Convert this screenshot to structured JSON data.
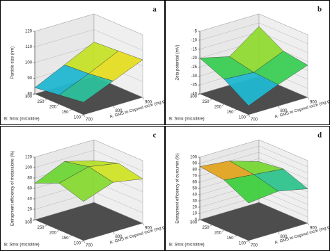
{
  "chart_data": [
    {
      "type": "surface3d",
      "label": "a",
      "zlabel": "Particle size (nm)",
      "xlabel": "A: GMS to Capmul mcm (mg per microlitre)",
      "ylabel": "B: Smix (microlitre)",
      "xlim": [
        700,
        900
      ],
      "xticks": [
        700,
        800,
        900
      ],
      "ylim": [
        100,
        300
      ],
      "yticks": [
        100,
        150,
        200,
        250,
        300
      ],
      "zlim": [
        80,
        120
      ],
      "zticks": [
        80,
        90,
        100,
        110,
        120
      ],
      "x": [
        700,
        800,
        900
      ],
      "y": [
        100,
        200,
        300
      ],
      "z": [
        [
          88,
          96,
          104
        ],
        [
          86,
          94,
          103
        ],
        [
          84,
          93,
          102
        ]
      ]
    },
    {
      "type": "surface3d",
      "label": "b",
      "zlabel": "Zeta potential (mV)",
      "xlabel": "A: GMS to Capmul mcm (mg per microlitre)",
      "ylabel": "B: Smix (microlitre)",
      "xlim": [
        700,
        900
      ],
      "xticks": [
        700,
        800,
        900
      ],
      "ylim": [
        100,
        300
      ],
      "yticks": [
        100,
        150,
        200,
        250,
        300
      ],
      "zlim": [
        -40,
        -5
      ],
      "zticks": [
        -40,
        -35,
        -30,
        -25,
        -20,
        -15,
        -10,
        -5
      ],
      "x": [
        700,
        800,
        900
      ],
      "y": [
        100,
        200,
        300
      ],
      "z": [
        [
          -35,
          -28,
          -22
        ],
        [
          -26,
          -27,
          -20
        ],
        [
          -20,
          -24,
          -12
        ]
      ]
    },
    {
      "type": "surface3d",
      "label": "c",
      "zlabel": "Entrapment efficiency of metaxalone (%)",
      "xlabel": "A: GMS to Capmul mcm (mg per microlitre)",
      "ylabel": "B: Smix (microlitre)",
      "xlim": [
        700,
        900
      ],
      "xticks": [
        700,
        800,
        900
      ],
      "ylim": [
        100,
        300
      ],
      "yticks": [
        100,
        150,
        200,
        250,
        300
      ],
      "zlim": [
        0,
        120
      ],
      "zticks": [
        0,
        20,
        40,
        60,
        80,
        100,
        120
      ],
      "x": [
        700,
        800,
        900
      ],
      "y": [
        100,
        200,
        300
      ],
      "z": [
        [
          75,
          95,
          85
        ],
        [
          90,
          105,
          95
        ],
        [
          70,
          95,
          80
        ]
      ]
    },
    {
      "type": "surface3d",
      "label": "d",
      "zlabel": "Entrapment efficiency of curcumin (%)",
      "xlabel": "A: GMS to Capmul mcm (mg per microlitre)",
      "ylabel": "B: Smix (microlitre)",
      "xlim": [
        700,
        900
      ],
      "xticks": [
        700,
        800,
        900
      ],
      "ylim": [
        100,
        300
      ],
      "yticks": [
        100,
        150,
        200,
        250,
        300
      ],
      "zlim": [
        0,
        100
      ],
      "zticks": [
        0,
        10,
        20,
        30,
        40,
        50,
        60,
        70,
        80,
        90,
        100
      ],
      "x": [
        700,
        800,
        900
      ],
      "y": [
        100,
        200,
        300
      ],
      "z": [
        [
          60,
          65,
          55
        ],
        [
          80,
          75,
          70
        ],
        [
          85,
          80,
          65
        ]
      ]
    }
  ]
}
